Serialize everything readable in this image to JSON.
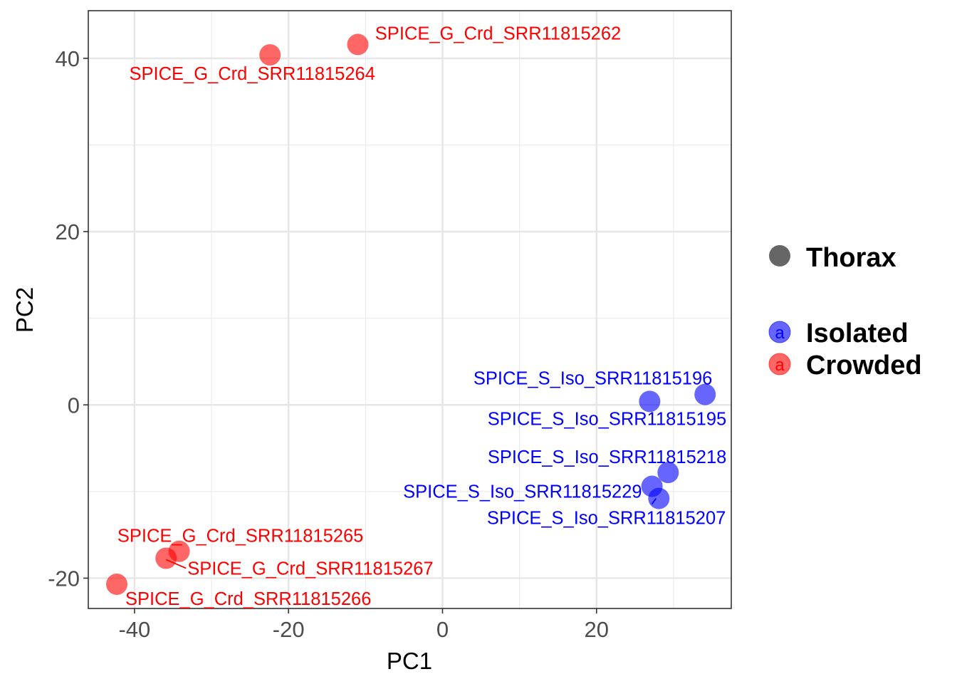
{
  "chart_data": {
    "type": "scatter",
    "xlabel": "PC1",
    "ylabel": "PC2",
    "xlim": [
      -46,
      37.5
    ],
    "ylim": [
      -23.5,
      45.5
    ],
    "x_ticks": [
      -40,
      -20,
      0,
      20
    ],
    "y_ticks": [
      -20,
      0,
      20,
      40
    ],
    "grid": true,
    "legend_position": "right",
    "legend": {
      "shape_title": "Thorax",
      "entries": [
        {
          "name": "Isolated",
          "color": "#0000ff",
          "glyph": "a"
        },
        {
          "name": "Crowded",
          "color": "#ff0000",
          "glyph": "a"
        }
      ]
    },
    "series": [
      {
        "name": "Isolated",
        "color": "#0000ff",
        "points": [
          {
            "label": "SPICE_S_Iso_SRR11815196",
            "x": 26.9,
            "y": 0.4
          },
          {
            "label": "SPICE_S_Iso_SRR11815195",
            "x": 34.1,
            "y": 1.2
          },
          {
            "label": "SPICE_S_Iso_SRR11815218",
            "x": 29.3,
            "y": -7.8
          },
          {
            "label": "SPICE_S_Iso_SRR11815229",
            "x": 27.2,
            "y": -9.4
          },
          {
            "label": "SPICE_S_Iso_SRR11815207",
            "x": 28.1,
            "y": -10.8
          }
        ]
      },
      {
        "name": "Crowded",
        "color": "#ff0000",
        "points": [
          {
            "label": "SPICE_G_Crd_SRR11815262",
            "x": -11.0,
            "y": 41.6
          },
          {
            "label": "SPICE_G_Crd_SRR11815264",
            "x": -22.4,
            "y": 40.4
          },
          {
            "label": "SPICE_G_Crd_SRR11815265",
            "x": -34.2,
            "y": -16.9
          },
          {
            "label": "SPICE_G_Crd_SRR11815267",
            "x": -35.9,
            "y": -17.7
          },
          {
            "label": "SPICE_G_Crd_SRR11815266",
            "x": -42.3,
            "y": -20.7
          }
        ]
      }
    ]
  }
}
